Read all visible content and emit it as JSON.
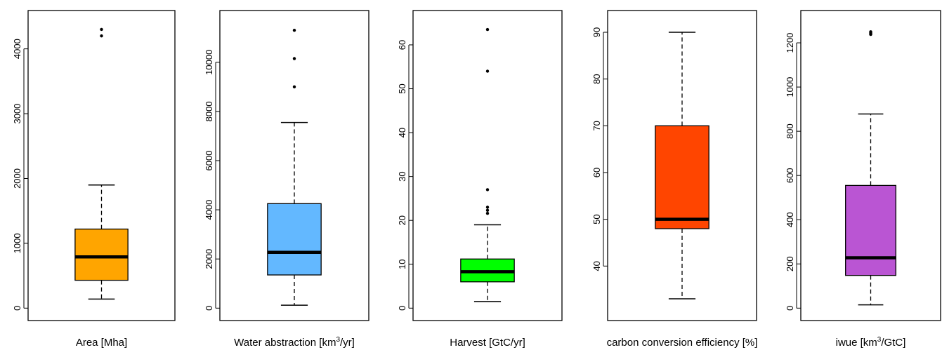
{
  "chart_data": [
    {
      "type": "box",
      "xlabel": "Area [Mha]",
      "color": "#FFA500",
      "ticks": [
        0,
        1000,
        2000,
        3000,
        4000
      ],
      "ylim": [
        0,
        4400
      ],
      "box": {
        "min": 140,
        "q1": 430,
        "median": 790,
        "q3": 1220,
        "max": 1900
      },
      "outliers": [
        4200,
        4300
      ]
    },
    {
      "type": "box",
      "xlabel": "Water abstraction [km",
      "xlabel_sup": "3",
      "xlabel_suffix": "/yr]",
      "color": "#63B8FF",
      "ticks": [
        0,
        2000,
        4000,
        6000,
        8000,
        10000
      ],
      "ylim": [
        0,
        11600
      ],
      "box": {
        "min": 120,
        "q1": 1350,
        "median": 2270,
        "q3": 4250,
        "max": 7550
      },
      "outliers": [
        9000,
        10150,
        11300
      ]
    },
    {
      "type": "box",
      "xlabel": "Harvest [GtC/yr]",
      "color": "#00FF00",
      "ticks": [
        0,
        10,
        20,
        30,
        40,
        50,
        60
      ],
      "ylim": [
        0,
        65
      ],
      "box": {
        "min": 1.5,
        "q1": 6,
        "median": 8.3,
        "q3": 11.2,
        "max": 19
      },
      "outliers": [
        21.6,
        22.3,
        23,
        27,
        54,
        63.5
      ]
    },
    {
      "type": "box",
      "xlabel": "carbon conversion efficiency [%]",
      "color": "#FF4500",
      "ticks": [
        40,
        50,
        60,
        70,
        80,
        90
      ],
      "ylim": [
        31,
        92
      ],
      "box": {
        "min": 33,
        "q1": 48,
        "median": 50,
        "q3": 70,
        "max": 90
      },
      "outliers": []
    },
    {
      "type": "box",
      "xlabel": "iwue [km",
      "xlabel_sup": "3",
      "xlabel_suffix": "/GtC]",
      "color": "#BA55D3",
      "ticks": [
        0,
        200,
        400,
        600,
        800,
        1000,
        1200
      ],
      "ylim": [
        0,
        1290
      ],
      "box": {
        "min": 15,
        "q1": 148,
        "median": 228,
        "q3": 555,
        "max": 878
      },
      "outliers": [
        1238,
        1242,
        1246,
        1250
      ]
    }
  ]
}
